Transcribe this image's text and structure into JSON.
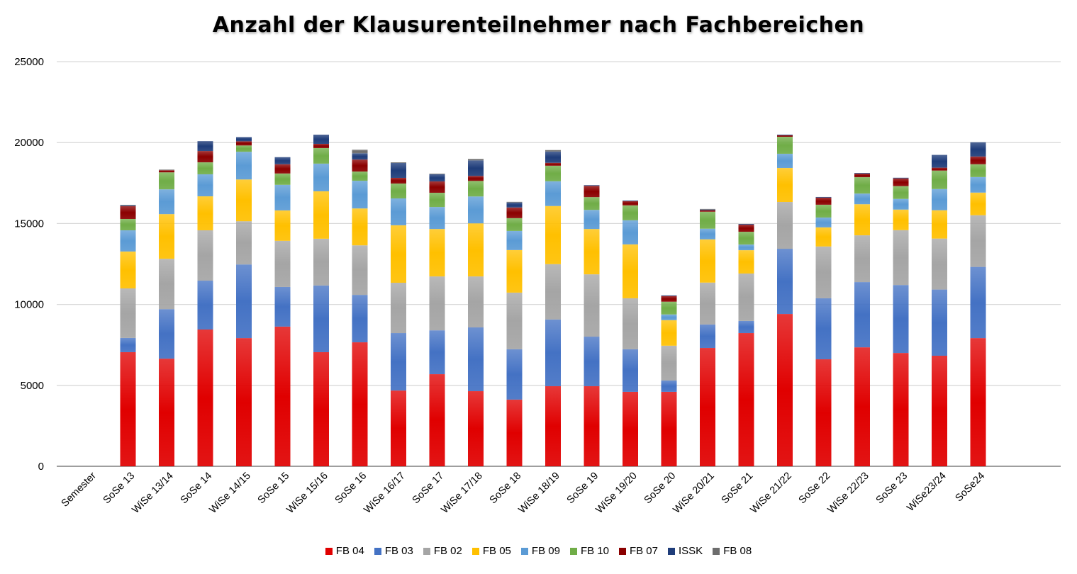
{
  "chart_data": {
    "type": "bar",
    "stacked": true,
    "title": "Anzahl der Klausurenteilnehmer nach Fachbereichen",
    "xlabel": "",
    "ylabel": "",
    "ylim": [
      0,
      25000
    ],
    "yticks": [
      0,
      5000,
      10000,
      15000,
      20000,
      25000
    ],
    "grid": true,
    "legend_position": "bottom",
    "categories": [
      "Semester",
      "SoSe 13",
      "WiSe 13/14",
      "SoSe 14",
      "WiSe 14/15",
      "SoSe 15",
      "WiSe 15/16",
      "SoSe 16",
      "WiSe 16/17",
      "SoSe 17",
      "WiSe 17/18",
      "SoSe 18",
      "WiSe 18/19",
      "SoSe 19",
      "WiSe 19/20",
      "SoSe 20",
      "WiSe 20/21",
      "SoSe 21",
      "WiSe 21/22",
      "SoSe 22",
      "WiSe 22/23",
      "SoSe 23",
      "WiSe23/24",
      "SoSe24"
    ],
    "series": [
      {
        "name": "FB 04",
        "color": "#e00000",
        "values": [
          0,
          7050,
          6650,
          8450,
          7920,
          8630,
          7050,
          7660,
          4680,
          5690,
          4640,
          4120,
          4950,
          4950,
          4600,
          4600,
          7310,
          8230,
          9410,
          6610,
          7350,
          7000,
          6830,
          7920
        ]
      },
      {
        "name": "FB 03",
        "color": "#4472c4",
        "values": [
          0,
          880,
          3060,
          3020,
          4550,
          2450,
          4120,
          2930,
          3550,
          2710,
          3940,
          3110,
          4120,
          3060,
          2630,
          700,
          1450,
          750,
          4030,
          3770,
          4030,
          4200,
          4090,
          4400
        ]
      },
      {
        "name": "FB 02",
        "color": "#a5a5a5",
        "values": [
          0,
          3060,
          3110,
          3110,
          2670,
          2850,
          2890,
          3060,
          3110,
          3330,
          3150,
          3500,
          3420,
          3850,
          3150,
          2150,
          2590,
          2930,
          2890,
          3200,
          2890,
          3390,
          3150,
          3190
        ]
      },
      {
        "name": "FB 05",
        "color": "#ffc000",
        "values": [
          0,
          2280,
          2760,
          2100,
          2580,
          1880,
          2930,
          2280,
          3550,
          2930,
          3280,
          2630,
          3590,
          2800,
          3330,
          1580,
          2670,
          1440,
          2100,
          1180,
          1920,
          1270,
          1750,
          1400
        ]
      },
      {
        "name": "FB 09",
        "color": "#5b9bd5",
        "values": [
          0,
          1310,
          1530,
          1360,
          1710,
          1580,
          1710,
          1710,
          1660,
          1360,
          1660,
          1180,
          1530,
          1180,
          1490,
          350,
          660,
          350,
          880,
          610,
          660,
          660,
          1310,
          960
        ]
      },
      {
        "name": "FB 10",
        "color": "#70ad47",
        "values": [
          0,
          700,
          1050,
          740,
          390,
          700,
          960,
          570,
          920,
          880,
          960,
          790,
          960,
          790,
          920,
          790,
          1050,
          790,
          1050,
          790,
          1010,
          790,
          1140,
          790
        ]
      },
      {
        "name": "FB 07",
        "color": "#8b0000",
        "values": [
          0,
          790,
          130,
          700,
          260,
          570,
          260,
          740,
          350,
          700,
          310,
          660,
          180,
          700,
          260,
          350,
          90,
          440,
          90,
          440,
          220,
          480,
          180,
          480
        ]
      },
      {
        "name": "ISSK",
        "color": "#1f3d7a",
        "values": [
          0,
          40,
          0,
          610,
          260,
          440,
          570,
          390,
          920,
          440,
          960,
          310,
          700,
          40,
          40,
          40,
          40,
          40,
          40,
          40,
          40,
          40,
          790,
          880
        ]
      },
      {
        "name": "FB 08",
        "color": "#6d6d6d",
        "values": [
          0,
          40,
          40,
          0,
          0,
          0,
          0,
          220,
          40,
          40,
          90,
          40,
          90,
          0,
          0,
          0,
          40,
          0,
          0,
          0,
          0,
          0,
          0,
          0
        ]
      }
    ]
  }
}
